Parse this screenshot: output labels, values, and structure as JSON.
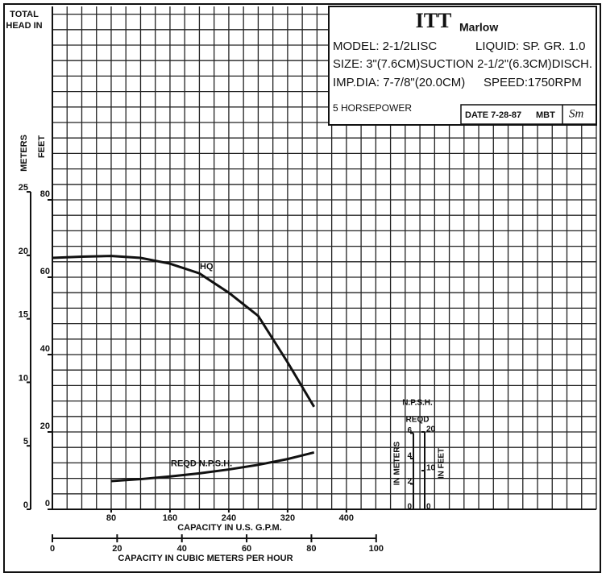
{
  "chart_data": {
    "type": "line",
    "x_label": "CAPACITY IN U.S. G.P.M.",
    "y_label_lines": [
      "TOTAL",
      "HEAD IN"
    ],
    "y_unit_label": "FEET",
    "y2_unit_label": "METERS",
    "x": [
      0,
      40,
      80,
      120,
      160,
      200,
      240,
      280,
      320,
      356
    ],
    "series": [
      {
        "name": "HQ",
        "color": "#111111",
        "values": [
          65,
          65.3,
          65.5,
          65,
          63.5,
          61,
          56,
          50,
          38,
          26.5
        ]
      },
      {
        "name": "REQD N.P.S.H.",
        "color": "#111111",
        "values": [
          null,
          null,
          7.3,
          7.8,
          8.5,
          9.3,
          10.3,
          11.5,
          13,
          14.7
        ]
      }
    ],
    "xlim": [
      0,
      740
    ],
    "xticks": [
      80,
      160,
      240,
      320,
      400
    ],
    "ylim": [
      0,
      130
    ],
    "yticks": [
      0,
      20,
      40,
      60,
      80
    ],
    "y2lim": [
      0,
      39.6
    ],
    "y2ticks": [
      0,
      5,
      10,
      15,
      20,
      25
    ],
    "x2_label": "CAPACITY IN CUBIC METERS PER HOUR",
    "x2lim": [
      0,
      168
    ],
    "x2ticks": [
      0,
      20,
      40,
      60,
      80,
      100
    ],
    "grid": true,
    "grid_x_step": 20,
    "grid_y_step": 4,
    "npsh_axis": {
      "title_lines": [
        "N.P.S.H.",
        "REQD"
      ],
      "meters_label": "IN METERS",
      "feet_label": "IN FEET",
      "meter_ticks": [
        0,
        2,
        4,
        6
      ],
      "feet_ticks": [
        0,
        10,
        20
      ]
    }
  },
  "info_box": {
    "logo": "ITT",
    "brand": "Marlow",
    "model": "MODEL: 2-1/2LISC",
    "liquid": "LIQUID: SP. GR. 1.0",
    "size": "SIZE: 3\"(7.6CM)SUCTION 2-1/2\"(6.3CM)DISCH.",
    "imp_dia": "IMP.DIA: 7-7/8\"(20.0CM)",
    "speed": "SPEED:1750RPM",
    "power": "5 HORSEPOWER",
    "date": "DATE 7-28-87",
    "initials": "MBT",
    "signature": "Sm"
  }
}
